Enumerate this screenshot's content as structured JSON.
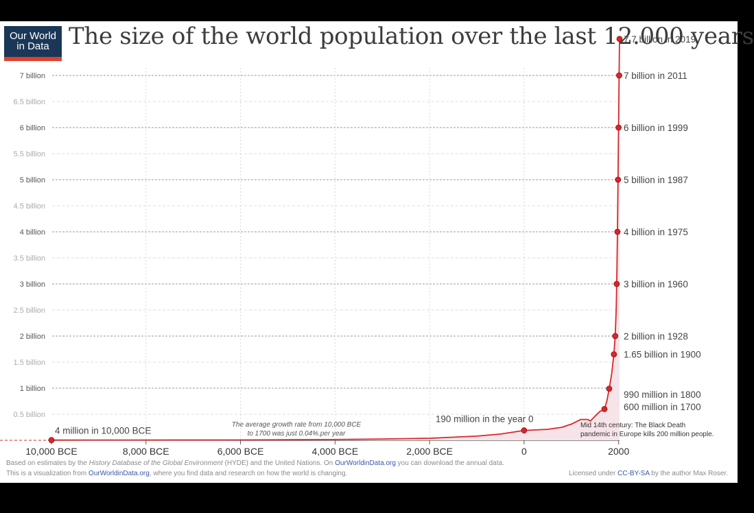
{
  "logo": {
    "line1": "Our World",
    "line2": "in Data"
  },
  "title": "The size of the world population over the last 12.000 years",
  "colors": {
    "line": "#d7272b",
    "area": "#f6e4e8",
    "logo_bg": "#1a3757",
    "logo_bar": "#e0412f",
    "link": "#3657a8"
  },
  "chart_data": {
    "type": "line",
    "title": "The size of the world population over the last 12.000 years",
    "x_unit": "year (negative = BCE)",
    "y_unit": "billion people",
    "xlim": [
      -10000,
      2019
    ],
    "ylim": [
      0,
      7.7
    ],
    "y_ticks": [
      {
        "value": 0.5,
        "label": "0.5 billion"
      },
      {
        "value": 1,
        "label": "1 billion"
      },
      {
        "value": 1.5,
        "label": "1.5 billion"
      },
      {
        "value": 2,
        "label": "2 billion"
      },
      {
        "value": 2.5,
        "label": "2.5 billion"
      },
      {
        "value": 3,
        "label": "3 billion"
      },
      {
        "value": 3.5,
        "label": "3.5  billion"
      },
      {
        "value": 4,
        "label": "4 billion"
      },
      {
        "value": 4.5,
        "label": "4.5 billion"
      },
      {
        "value": 5,
        "label": "5 billion"
      },
      {
        "value": 5.5,
        "label": "5.5 billion"
      },
      {
        "value": 6,
        "label": "6 billion"
      },
      {
        "value": 6.5,
        "label": "6.5 billion"
      },
      {
        "value": 7,
        "label": "7 billion"
      }
    ],
    "x_ticks": [
      {
        "value": -10000,
        "label": "10,000 BCE"
      },
      {
        "value": -8000,
        "label": "8,000 BCE"
      },
      {
        "value": -6000,
        "label": "6,000 BCE"
      },
      {
        "value": -4000,
        "label": "4,000 BCE"
      },
      {
        "value": -2000,
        "label": "2,000 BCE"
      },
      {
        "value": 0,
        "label": "0"
      },
      {
        "value": 2000,
        "label": "2000"
      }
    ],
    "series": [
      {
        "points": [
          [
            -10000,
            0.004
          ],
          [
            -8000,
            0.005
          ],
          [
            -6000,
            0.007
          ],
          [
            -5000,
            0.01
          ],
          [
            -4000,
            0.014
          ],
          [
            -3000,
            0.025
          ],
          [
            -2000,
            0.04
          ],
          [
            -1000,
            0.08
          ],
          [
            -500,
            0.12
          ],
          [
            0,
            0.19
          ],
          [
            500,
            0.21
          ],
          [
            800,
            0.25
          ],
          [
            1000,
            0.31
          ],
          [
            1200,
            0.4
          ],
          [
            1300,
            0.4
          ],
          [
            1348,
            0.4
          ],
          [
            1400,
            0.37
          ],
          [
            1500,
            0.46
          ],
          [
            1600,
            0.55
          ],
          [
            1700,
            0.6
          ],
          [
            1750,
            0.75
          ],
          [
            1800,
            0.99
          ],
          [
            1850,
            1.26
          ],
          [
            1900,
            1.65
          ],
          [
            1928,
            2.0
          ],
          [
            1950,
            2.53
          ],
          [
            1960,
            3.0
          ],
          [
            1975,
            4.0
          ],
          [
            1987,
            5.0
          ],
          [
            1999,
            6.0
          ],
          [
            2011,
            7.0
          ],
          [
            2019,
            7.7
          ]
        ]
      }
    ],
    "markers": [
      {
        "x": -10000,
        "y": 0.004,
        "label": "4 million in 10,000 BCE",
        "side": "above"
      },
      {
        "x": 0,
        "y": 0.19,
        "label": "190 million in the year 0",
        "side": "above"
      },
      {
        "x": 1700,
        "y": 0.6,
        "label": "600 million in 1700",
        "side": "right"
      },
      {
        "x": 1800,
        "y": 0.99,
        "label": "990 million in 1800",
        "side": "right"
      },
      {
        "x": 1900,
        "y": 1.65,
        "label": "1.65 billion in 1900",
        "side": "right"
      },
      {
        "x": 1928,
        "y": 2.0,
        "label": "2 billion in 1928",
        "side": "right"
      },
      {
        "x": 1960,
        "y": 3.0,
        "label": "3 billion in 1960",
        "side": "right"
      },
      {
        "x": 1975,
        "y": 4.0,
        "label": "4 billion in 1975",
        "side": "right"
      },
      {
        "x": 1987,
        "y": 5.0,
        "label": "5 billion in 1987",
        "side": "right"
      },
      {
        "x": 1999,
        "y": 6.0,
        "label": "6 billion in 1999",
        "side": "right"
      },
      {
        "x": 2011,
        "y": 7.0,
        "label": "7 billion in 2011",
        "side": "right"
      },
      {
        "x": 2019,
        "y": 7.7,
        "label": "7.7 billion in 2019",
        "side": "right"
      }
    ],
    "annotations": [
      {
        "id": "growth",
        "lines": [
          "The average growth rate from 10,000 BCE",
          "to 1700 was just  0.04%.per year"
        ]
      },
      {
        "id": "plague",
        "lines": [
          "Mid 14th century: The Black Death",
          "pandemic in Europe kills 200 million people."
        ]
      }
    ],
    "grid": "horizontal dashed at every 0.5 billion, vertical dotted at every 2,000 years"
  },
  "source": {
    "line1_a": "Based on estimates by the ",
    "line1_b": "History Database of the Global Environment",
    "line1_c": " (HYDE) and the United Nations. On ",
    "line1_link": "OurWorldinData.org",
    "line1_d": " you can download the annual data.",
    "line2_a": "This is a visualization from ",
    "line2_link": "OurWorldinData.org",
    "line2_b": ", where you find data and research on how the world is changing.",
    "license_a": "Licensed under ",
    "license_link": "CC-BY-SA",
    "license_b": " by the author Max Roser."
  }
}
